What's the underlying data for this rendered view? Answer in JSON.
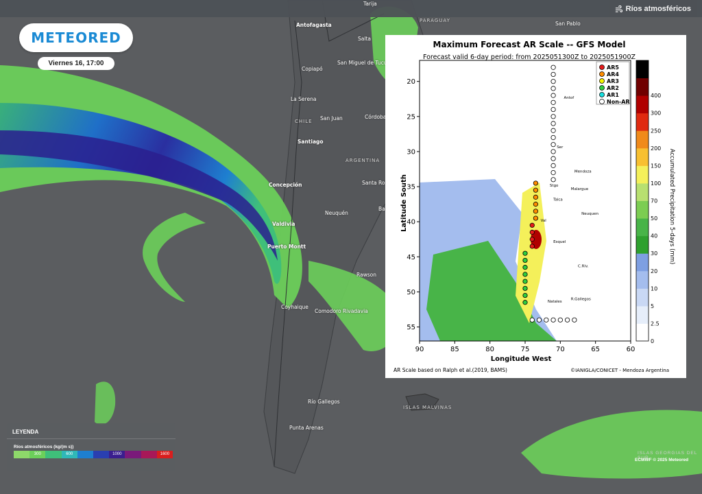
{
  "header": {
    "layer_title": "Ríos atmosféricos",
    "layer_icon": "wind-icon"
  },
  "brand": {
    "logo_text": "METEORED",
    "date": "Viernes 16, 17:00"
  },
  "map": {
    "cities": [
      {
        "name": "Tarija"
      },
      {
        "name": "PARAGUAY",
        "kind": "country"
      },
      {
        "name": "San Pablo"
      },
      {
        "name": "Antofagasta",
        "kind": "bold"
      },
      {
        "name": "Salta"
      },
      {
        "name": "Copiapó"
      },
      {
        "name": "San Miguel de Tucumán"
      },
      {
        "name": "La Serena"
      },
      {
        "name": "Córdoba"
      },
      {
        "name": "CHILE",
        "kind": "country"
      },
      {
        "name": "San Juan"
      },
      {
        "name": "Santiago",
        "kind": "bold"
      },
      {
        "name": "ARGENTINA",
        "kind": "country"
      },
      {
        "name": "Concepción",
        "kind": "bold"
      },
      {
        "name": "Santa Rosa"
      },
      {
        "name": "Neuquén"
      },
      {
        "name": "Bahía Blanca"
      },
      {
        "name": "Valdivia",
        "kind": "bold"
      },
      {
        "name": "Puerto Montt",
        "kind": "bold"
      },
      {
        "name": "Rawson"
      },
      {
        "name": "Coyhaique"
      },
      {
        "name": "Comodoro Rivadavia"
      },
      {
        "name": "Río Gallegos"
      },
      {
        "name": "ISLAS MALVINAS",
        "kind": "country"
      },
      {
        "name": "Punta Arenas"
      }
    ],
    "islas_georgias": "ISLAS GEORGIAS DEL SUR",
    "copyright": "ECMWF © 2025 Meteored"
  },
  "legend": {
    "title": "LEYENDA",
    "subtitle": "Ríos atmosféricos (kg/(m s))",
    "stops": [
      {
        "color": "#8ed86a",
        "label": ""
      },
      {
        "color": "#6cd05a",
        "label": "300"
      },
      {
        "color": "#3fbf7a",
        "label": ""
      },
      {
        "color": "#2fb8b8",
        "label": "600"
      },
      {
        "color": "#1e7fd0",
        "label": ""
      },
      {
        "color": "#2a3fb0",
        "label": ""
      },
      {
        "color": "#3a1e8e",
        "label": "1000"
      },
      {
        "color": "#7a1a7a",
        "label": ""
      },
      {
        "color": "#a81858",
        "label": ""
      },
      {
        "color": "#d81e1e",
        "label": "1600"
      }
    ]
  },
  "inset": {
    "title": "Maximum Forecast AR Scale -- GFS Model",
    "subtitle": "Forecast valid 6-day period: from 2025051300Z to 2025051900Z",
    "xlabel": "Longitude West",
    "ylabel": "Latitude South",
    "colorbar_label": "Accumulated Precipitation 5-days (mm)",
    "footer_left": "AR Scale based on Ralph et al.(2019, BAMS)",
    "footer_right": "©IANIGLA/CONICET - Mendoza Argentina",
    "places": [
      "Antof",
      "Ser",
      "Mendoza",
      "Stgo",
      "Malargue",
      "Talca",
      "Neuquen",
      "Val",
      "Esquel",
      "C.Riv.",
      "Natales",
      "R.Gallegos"
    ],
    "chart_data": {
      "type": "scatter",
      "xlim": [
        90,
        60
      ],
      "ylim": [
        57,
        17
      ],
      "xticks": [
        90,
        85,
        80,
        75,
        70,
        65,
        60
      ],
      "yticks": [
        20,
        25,
        30,
        35,
        40,
        45,
        50,
        55
      ],
      "colorbar": {
        "ticks": [
          0,
          2.5,
          5,
          10,
          20,
          30,
          40,
          50,
          70,
          100,
          150,
          200,
          250,
          300,
          400
        ],
        "colors": [
          "#ffffff",
          "#e6eefa",
          "#c9d8f4",
          "#a4bdee",
          "#7e9fe2",
          "#2ea02e",
          "#48b448",
          "#7ccd52",
          "#b8e070",
          "#f4f05a",
          "#f8c030",
          "#f08a1a",
          "#e02a10",
          "#b00000",
          "#700000",
          "#000000"
        ]
      },
      "legend": [
        {
          "name": "AR5",
          "color": "#e41a1a"
        },
        {
          "name": "AR4",
          "color": "#ff8c00"
        },
        {
          "name": "AR3",
          "color": "#f4f400"
        },
        {
          "name": "AR2",
          "color": "#2ecc40"
        },
        {
          "name": "AR1",
          "color": "#19e0e0"
        },
        {
          "name": "Non-AR",
          "color": "#ffffff"
        }
      ],
      "legend_position": "top-right"
    }
  }
}
